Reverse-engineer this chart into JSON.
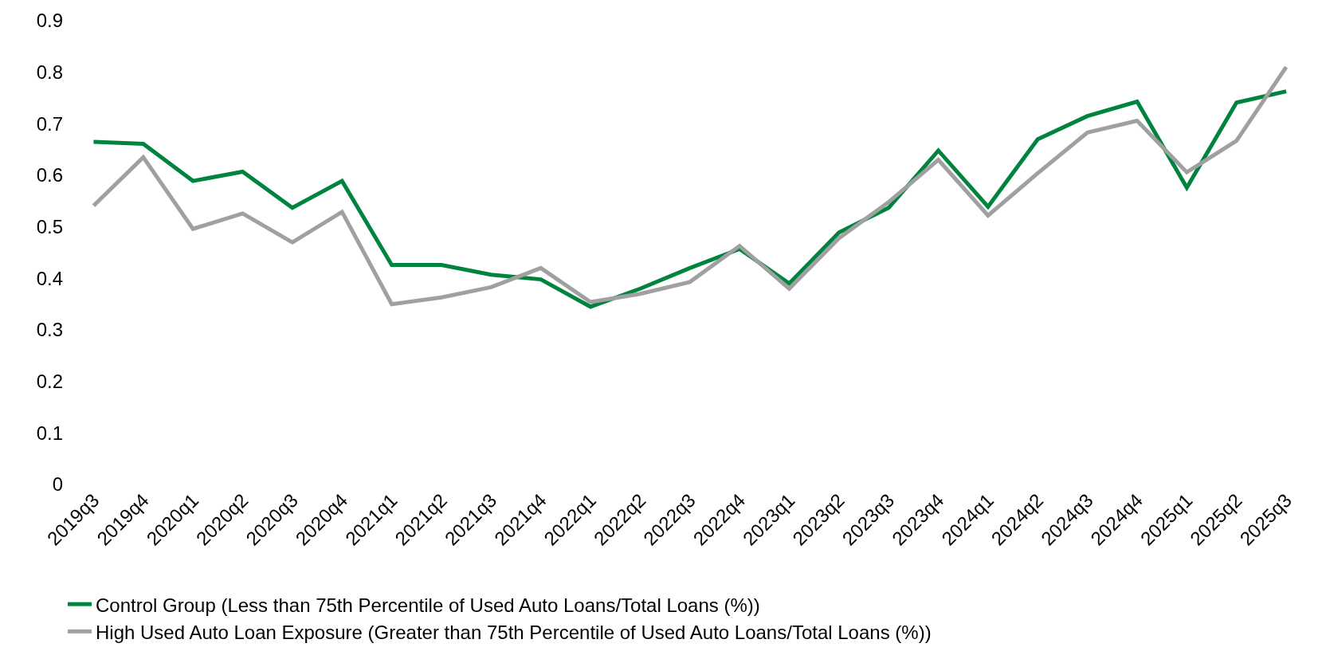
{
  "chart_data": {
    "type": "line",
    "categories": [
      "2019q3",
      "2019q4",
      "2020q1",
      "2020q2",
      "2020q3",
      "2020q4",
      "2021q1",
      "2021q2",
      "2021q3",
      "2021q4",
      "2022q1",
      "2022q2",
      "2022q3",
      "2022q4",
      "2023q1",
      "2023q2",
      "2023q3",
      "2023q4",
      "2024q1",
      "2024q2",
      "2024q3",
      "2024q4",
      "2025q1",
      "2025q2",
      "2025q3"
    ],
    "series": [
      {
        "name": "Control Group (Less than 75th Percentile of Used Auto Loans/Total Loans (%))",
        "color": "#00843d",
        "values": [
          0.665,
          0.661,
          0.589,
          0.607,
          0.537,
          0.589,
          0.426,
          0.426,
          0.407,
          0.398,
          0.345,
          0.38,
          0.42,
          0.457,
          0.39,
          0.489,
          0.537,
          0.648,
          0.539,
          0.67,
          0.715,
          0.743,
          0.576,
          0.741,
          0.763
        ]
      },
      {
        "name": "High Used Auto Loan Exposure (Greater than 75th Percentile of Used Auto Loans/Total Loans (%))",
        "color": "#a0a0a0",
        "values": [
          0.541,
          0.635,
          0.496,
          0.526,
          0.47,
          0.529,
          0.35,
          0.363,
          0.383,
          0.42,
          0.354,
          0.37,
          0.393,
          0.463,
          0.38,
          0.478,
          0.548,
          0.63,
          0.522,
          0.604,
          0.683,
          0.706,
          0.606,
          0.667,
          0.81
        ]
      }
    ],
    "ylim": [
      0,
      0.9
    ],
    "yticks": [
      0,
      0.1,
      0.2,
      0.3,
      0.4,
      0.5,
      0.6,
      0.7,
      0.8,
      0.9
    ],
    "legend": "bottom",
    "marker": "none",
    "line_style": "solid"
  }
}
